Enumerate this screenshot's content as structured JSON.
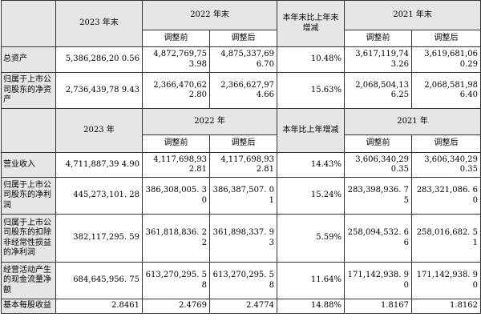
{
  "table1": {
    "header": {
      "col_2023": "2023 年末",
      "col_2022": "2022 年末",
      "col_change": "本年末比上年末增减",
      "col_2021": "2021 年末",
      "sub_before": "调整前",
      "sub_after": "调整后"
    },
    "rows": [
      {
        "label": "总资产",
        "v2023": "5,386,286,20 0.56",
        "v2022_before": "4,872,769,75 3.98",
        "v2022_after": "4,875,337,69 6.70",
        "change": "10.48%",
        "v2021_before": "3,617,119,74 3.26",
        "v2021_after": "3,619,681,06 0.29"
      },
      {
        "label": "归属于上市公司股东的净资产",
        "v2023": "2,736,439,78 9.43",
        "v2022_before": "2,366,470,62 2.80",
        "v2022_after": "2,366,627,97 4.66",
        "change": "15.63%",
        "v2021_before": "2,068,504,13 6.25",
        "v2021_after": "2,068,581,98 6.40"
      }
    ]
  },
  "table2": {
    "header": {
      "col_2023": "2023 年",
      "col_2022": "2022 年",
      "col_change": "本年比上年增减",
      "col_2021": "2021 年",
      "sub_before": "调整前",
      "sub_after": "调整后"
    },
    "rows": [
      {
        "label": "营业收入",
        "v2023": "4,711,887,39 4.90",
        "v2022_before": "4,117,698,93 2.81",
        "v2022_after": "4,117,698,93 2.81",
        "change": "14.43%",
        "v2021_before": "3,606,340,29 0.35",
        "v2021_after": "3,606,340,29 0.35"
      },
      {
        "label": "归属于上市公司股东的净利润",
        "v2023": "445,273,101. 28",
        "v2022_before": "386,308,005. 30",
        "v2022_after": "386,387,507. 01",
        "change": "15.24%",
        "v2021_before": "283,398,936. 75",
        "v2021_after": "283,321,086. 60"
      },
      {
        "label": "归属于上市公司股东的扣除非经常性损益的净利润",
        "v2023": "382,117,295. 59",
        "v2022_before": "361,818,836. 22",
        "v2022_after": "361,898,337. 93",
        "change": "5.59%",
        "v2021_before": "258,094,532. 66",
        "v2021_after": "258,016,682. 51"
      },
      {
        "label": "经营活动产生的现金流量净额",
        "v2023": "684,645,956. 75",
        "v2022_before": "613,270,295. 58",
        "v2022_after": "613,270,295. 58",
        "change": "11.64%",
        "v2021_before": "171,142,938. 90",
        "v2021_after": "171,142,938. 90"
      },
      {
        "label": "基本每股收益",
        "v2023": "2.8461",
        "v2022_before": "2.4769",
        "v2022_after": "2.4774",
        "change": "14.88%",
        "v2021_before": "1.8167",
        "v2021_after": "1.8162"
      }
    ]
  }
}
